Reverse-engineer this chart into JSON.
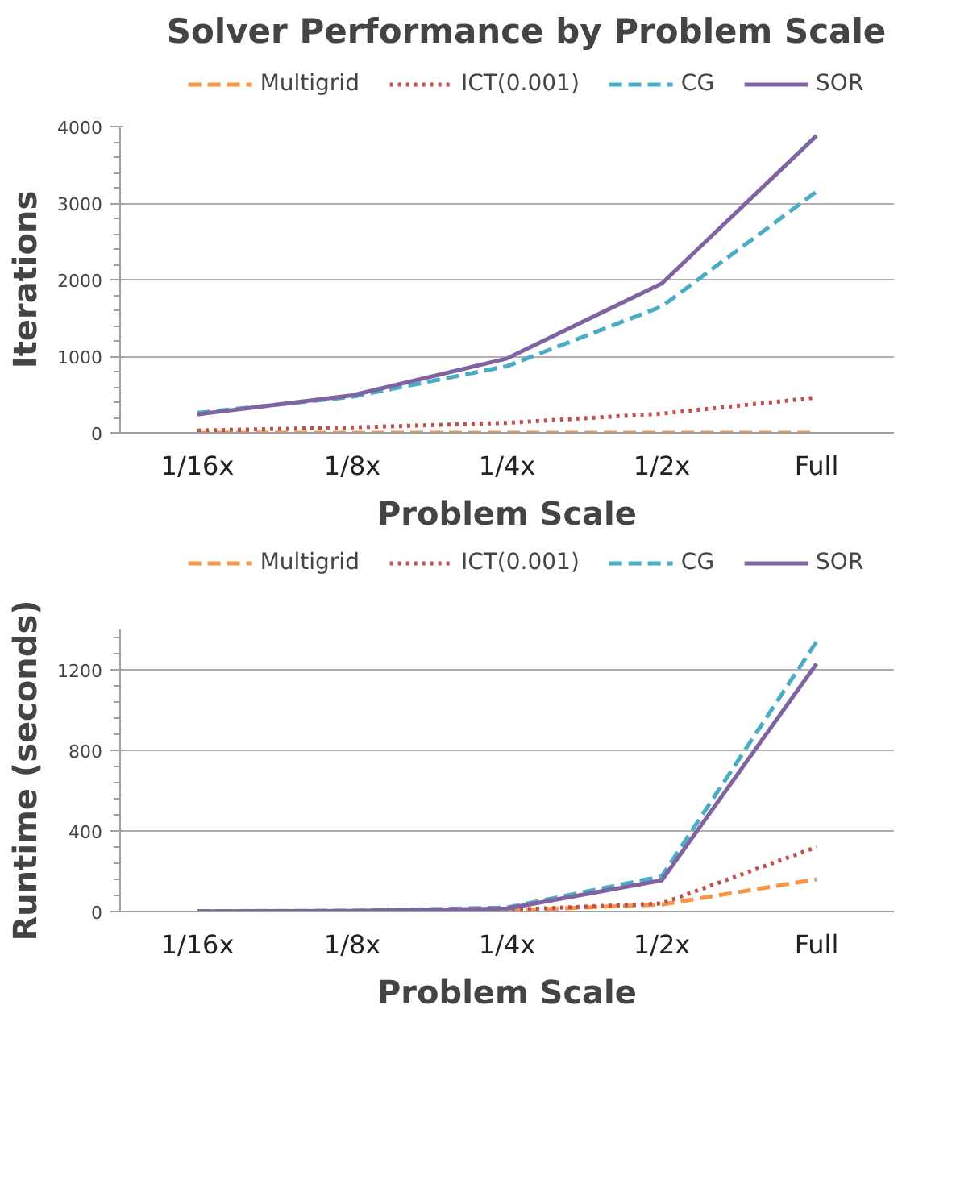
{
  "chart_data": [
    {
      "type": "line",
      "title": "Solver Performance by Problem Scale",
      "xlabel": "Problem Scale",
      "ylabel": "Iterations",
      "categories": [
        "1/16x",
        "1/8x",
        "1/4x",
        "1/2x",
        "Full"
      ],
      "series": [
        {
          "name": "Multigrid",
          "color": "#f79646",
          "line_style": "dashed",
          "values": [
            0,
            0,
            0,
            0,
            0
          ]
        },
        {
          "name": "ICT(0.001)",
          "color": "#c0504d",
          "line_style": "dotted",
          "values": [
            30,
            70,
            130,
            250,
            460
          ]
        },
        {
          "name": "CG",
          "color": "#4bacc6",
          "line_style": "dashed",
          "values": [
            260,
            470,
            870,
            1650,
            3150
          ]
        },
        {
          "name": "SOR",
          "color": "#8064a2",
          "line_style": "solid",
          "values": [
            240,
            490,
            970,
            1950,
            3880
          ]
        }
      ],
      "ylim": [
        0,
        4000
      ],
      "yticks": [
        0,
        1000,
        2000,
        3000,
        4000
      ],
      "grid": "y",
      "legend": "top"
    },
    {
      "type": "line",
      "xlabel": "Problem Scale",
      "ylabel": "Runtime (seconds)",
      "categories": [
        "1/16x",
        "1/8x",
        "1/4x",
        "1/2x",
        "Full"
      ],
      "series": [
        {
          "name": "Multigrid",
          "color": "#f79646",
          "line_style": "dashed",
          "values": [
            0,
            1,
            5,
            35,
            160
          ]
        },
        {
          "name": "ICT(0.001)",
          "color": "#c0504d",
          "line_style": "dotted",
          "values": [
            0,
            1,
            8,
            40,
            320
          ]
        },
        {
          "name": "CG",
          "color": "#4bacc6",
          "line_style": "dashed",
          "values": [
            2,
            4,
            20,
            175,
            1340
          ]
        },
        {
          "name": "SOR",
          "color": "#8064a2",
          "line_style": "solid",
          "values": [
            1,
            3,
            15,
            155,
            1230
          ]
        }
      ],
      "ylim": [
        0,
        1400
      ],
      "yticks": [
        0,
        400,
        800,
        1200
      ],
      "grid": "y",
      "legend": "top"
    }
  ]
}
